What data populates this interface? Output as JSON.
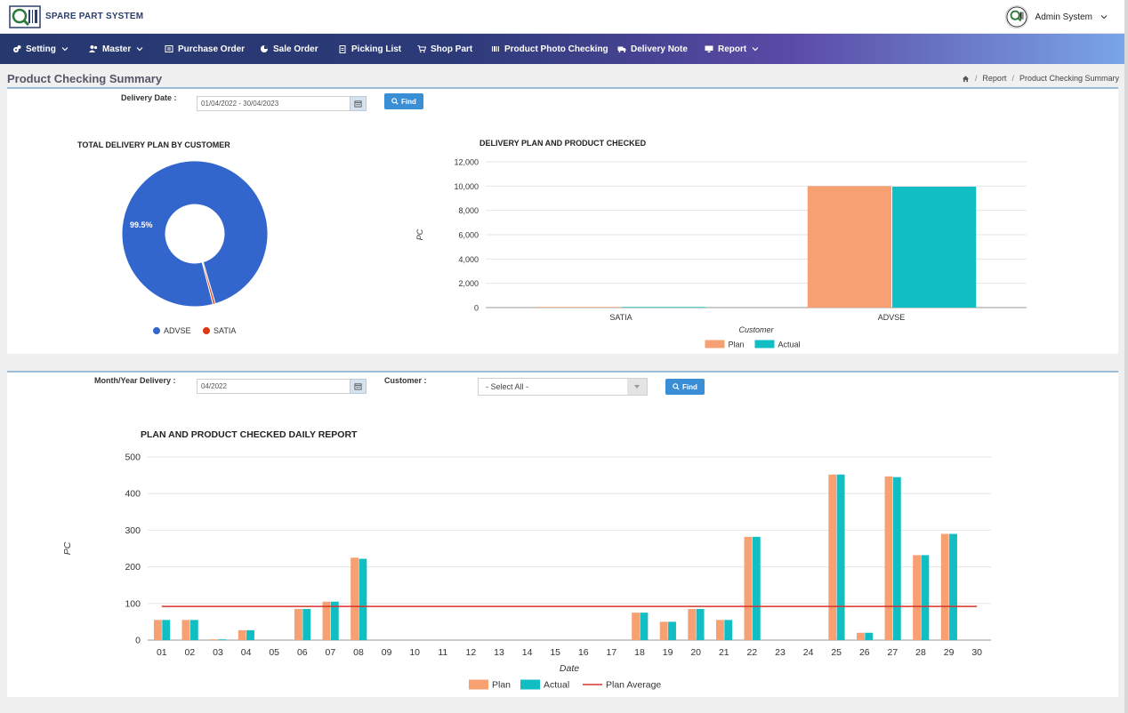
{
  "app": {
    "brand": "SPARE PART SYSTEM",
    "user": "Admin System"
  },
  "nav": [
    {
      "label": "Setting",
      "icon": "gears-icon",
      "dropdown": true
    },
    {
      "label": "Master",
      "icon": "users-icon",
      "dropdown": true
    },
    {
      "label": "Purchase Order",
      "icon": "list-icon",
      "dropdown": false
    },
    {
      "label": "Sale Order",
      "icon": "pie-icon",
      "dropdown": false
    },
    {
      "label": "Picking List",
      "icon": "clipboard-icon",
      "dropdown": false
    },
    {
      "label": "Shop Part",
      "icon": "cart-icon",
      "dropdown": false
    },
    {
      "label": "Product Photo Checking",
      "icon": "barcode-icon",
      "dropdown": false
    },
    {
      "label": "Delivery Note",
      "icon": "truck-icon",
      "dropdown": false
    },
    {
      "label": "Report",
      "icon": "monitor-icon",
      "dropdown": true
    }
  ],
  "page": {
    "title": "Product Checking Summary",
    "breadcrumb": [
      "Report",
      "Product Checking Summary"
    ]
  },
  "filter1": {
    "label": "Delivery Date :",
    "value": "01/04/2022 - 30/04/2023",
    "find_label": "Find"
  },
  "filter2": {
    "month_label": "Month/Year Delivery :",
    "month_value": "04/2022",
    "customer_label": "Customer :",
    "customer_value": "- Select All -",
    "find_label": "Find"
  },
  "colors": {
    "plan": "#f7a072",
    "actual": "#10bec4",
    "average": "#d9332a",
    "advse": "#3366cc",
    "satia": "#dc3912"
  },
  "chart_data": [
    {
      "type": "pie",
      "title": "TOTAL DELIVERY PLAN BY CUSTOMER",
      "labels": [
        "ADVSE",
        "SATIA"
      ],
      "percents": [
        99.5,
        0.5
      ],
      "slice_label": "99.5%",
      "donut": true,
      "legend": "bottom"
    },
    {
      "type": "bar",
      "title": "DELIVERY PLAN AND PRODUCT CHECKED",
      "categories": [
        "SATIA",
        "ADVSE"
      ],
      "series": [
        {
          "name": "Plan",
          "values": [
            50,
            10000
          ]
        },
        {
          "name": "Actual",
          "values": [
            50,
            9950
          ]
        }
      ],
      "xlabel": "Customer",
      "ylabel": "PC",
      "ylim": [
        0,
        12000
      ],
      "yticks": [
        "12,000",
        "10,000",
        "8,000",
        "6,000",
        "4,000",
        "2,000",
        "0"
      ],
      "legend": "bottom"
    },
    {
      "type": "bar",
      "title": "PLAN AND PRODUCT CHECKED DAILY REPORT",
      "categories": [
        "01",
        "02",
        "03",
        "04",
        "05",
        "06",
        "07",
        "08",
        "09",
        "10",
        "11",
        "12",
        "13",
        "14",
        "15",
        "16",
        "17",
        "18",
        "19",
        "20",
        "21",
        "22",
        "23",
        "24",
        "25",
        "26",
        "27",
        "28",
        "29",
        "30"
      ],
      "series": [
        {
          "name": "Plan",
          "values": [
            55,
            55,
            2,
            27,
            0,
            85,
            105,
            225,
            0,
            0,
            0,
            0,
            0,
            0,
            0,
            0,
            0,
            75,
            50,
            85,
            55,
            282,
            0,
            0,
            452,
            20,
            447,
            232,
            290,
            0
          ]
        },
        {
          "name": "Actual",
          "values": [
            55,
            55,
            2,
            27,
            0,
            85,
            105,
            222,
            0,
            0,
            0,
            0,
            0,
            0,
            0,
            0,
            0,
            75,
            50,
            85,
            55,
            282,
            0,
            0,
            452,
            20,
            445,
            232,
            290,
            0
          ]
        },
        {
          "name": "Plan Average",
          "type": "line",
          "value": 92
        }
      ],
      "xlabel": "Date",
      "ylabel": "PC",
      "ylim": [
        0,
        500
      ],
      "yticks": [
        "500",
        "400",
        "300",
        "200",
        "100",
        "0"
      ],
      "legend": "bottom"
    }
  ]
}
